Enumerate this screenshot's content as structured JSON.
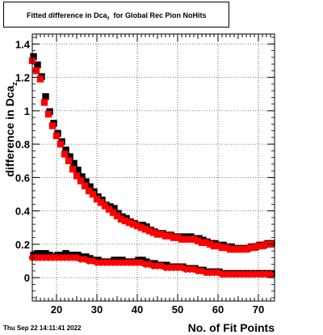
{
  "chart_data": {
    "type": "scatter",
    "title_main": "Fitted difference in Dca",
    "title_sub": "z",
    "title_rest": "for Global Rec Pion NoHits",
    "xlabel": "No. of Fit Points",
    "ylabel_main": "difference in Dca",
    "ylabel_sub": "z",
    "xlim": [
      14,
      74
    ],
    "ylim": [
      -0.14,
      1.46
    ],
    "x_ticks": [
      20,
      30,
      40,
      50,
      60,
      70
    ],
    "y_ticks": [
      0,
      0.2,
      0.4,
      0.6,
      0.8,
      1,
      1.2,
      1.4
    ],
    "grid": true,
    "series": [
      {
        "color": "#000000",
        "marker": "square",
        "x": [
          14,
          15,
          16,
          17,
          18,
          19,
          20,
          21,
          22,
          23,
          24,
          25,
          26,
          27,
          28,
          29,
          30,
          31,
          32,
          33,
          34,
          35,
          36,
          37,
          38,
          39,
          40,
          41,
          42,
          43,
          44,
          45,
          46,
          47,
          48,
          49,
          50,
          51,
          52,
          53,
          54,
          55,
          56,
          57,
          58,
          59,
          60,
          61,
          62,
          63,
          64,
          65,
          66,
          67,
          68,
          69,
          70,
          71,
          72,
          73
        ],
        "y": [
          1.32,
          1.27,
          1.2,
          1.08,
          0.99,
          0.92,
          0.86,
          0.81,
          0.76,
          0.72,
          0.68,
          0.64,
          0.6,
          0.57,
          0.54,
          0.51,
          0.48,
          0.46,
          0.43,
          0.42,
          0.41,
          0.38,
          0.36,
          0.35,
          0.33,
          0.32,
          0.31,
          0.31,
          0.3,
          0.28,
          0.27,
          0.26,
          0.26,
          0.25,
          0.25,
          0.24,
          0.24,
          0.24,
          0.24,
          0.24,
          0.23,
          0.23,
          0.22,
          0.21,
          0.2,
          0.2,
          0.19,
          0.19,
          0.18,
          0.18,
          0.17,
          0.17,
          0.17,
          0.17,
          0.18,
          0.18,
          0.19,
          0.19,
          0.2,
          0.2
        ]
      },
      {
        "color": "#000000",
        "marker": "square",
        "x": [
          14,
          15,
          16,
          17,
          18,
          19,
          20,
          21,
          22,
          23,
          24,
          25,
          26,
          27,
          28,
          29,
          30,
          31,
          32,
          33,
          34,
          35,
          36,
          37,
          38,
          39,
          40,
          41,
          42,
          43,
          44,
          45,
          46,
          47,
          48,
          49,
          50,
          51,
          52,
          53,
          54,
          55,
          56,
          57,
          58,
          59,
          60,
          61,
          62,
          63,
          64,
          65,
          66,
          67,
          68,
          69,
          70,
          71,
          72,
          73
        ],
        "y": [
          0.13,
          0.14,
          0.14,
          0.14,
          0.13,
          0.12,
          0.13,
          0.13,
          0.14,
          0.13,
          0.13,
          0.13,
          0.12,
          0.12,
          0.11,
          0.1,
          0.1,
          0.09,
          0.09,
          0.09,
          0.1,
          0.1,
          0.1,
          0.09,
          0.09,
          0.09,
          0.1,
          0.1,
          0.09,
          0.08,
          0.08,
          0.07,
          0.07,
          0.07,
          0.06,
          0.06,
          0.06,
          0.06,
          0.05,
          0.05,
          0.05,
          0.04,
          0.04,
          0.03,
          0.03,
          0.03,
          0.03,
          0.02,
          0.02,
          0.02,
          0.02,
          0.02,
          0.02,
          0.02,
          0.02,
          0.02,
          0.02,
          0.02,
          0.02,
          0.02
        ]
      },
      {
        "color": "#ff0000",
        "marker": "square",
        "x": [
          14,
          15,
          16,
          17,
          18,
          19,
          20,
          21,
          22,
          23,
          24,
          25,
          26,
          27,
          28,
          29,
          30,
          31,
          32,
          33,
          34,
          35,
          36,
          37,
          38,
          39,
          40,
          41,
          42,
          43,
          44,
          45,
          46,
          47,
          48,
          49,
          50,
          51,
          52,
          53,
          54,
          55,
          56,
          57,
          58,
          59,
          60,
          61,
          62,
          63,
          64,
          65,
          66,
          67,
          68,
          69,
          70,
          71,
          72,
          73
        ],
        "y": [
          1.3,
          1.24,
          1.19,
          1.05,
          0.98,
          0.91,
          0.85,
          0.8,
          0.74,
          0.7,
          0.65,
          0.61,
          0.58,
          0.55,
          0.52,
          0.5,
          0.47,
          0.45,
          0.43,
          0.41,
          0.39,
          0.37,
          0.35,
          0.34,
          0.33,
          0.32,
          0.31,
          0.3,
          0.29,
          0.28,
          0.27,
          0.26,
          0.26,
          0.25,
          0.25,
          0.24,
          0.24,
          0.23,
          0.23,
          0.23,
          0.23,
          0.22,
          0.21,
          0.21,
          0.2,
          0.19,
          0.19,
          0.18,
          0.18,
          0.17,
          0.17,
          0.17,
          0.17,
          0.17,
          0.18,
          0.18,
          0.19,
          0.19,
          0.2,
          0.2
        ]
      },
      {
        "color": "#ff0000",
        "marker": "circle",
        "x": [
          14,
          15,
          16,
          17,
          18,
          19,
          20,
          21,
          22,
          23,
          24,
          25,
          26,
          27,
          28,
          29,
          30,
          31,
          32,
          33,
          34,
          35,
          36,
          37,
          38,
          39,
          40,
          41,
          42,
          43,
          44,
          45,
          46,
          47,
          48,
          49,
          50,
          51,
          52,
          53,
          54,
          55,
          56,
          57,
          58,
          59,
          60,
          61,
          62,
          63,
          64,
          65,
          66,
          67,
          68,
          69,
          70,
          71,
          72,
          73
        ],
        "y": [
          0.12,
          0.12,
          0.12,
          0.12,
          0.12,
          0.12,
          0.12,
          0.12,
          0.12,
          0.12,
          0.12,
          0.12,
          0.11,
          0.11,
          0.1,
          0.1,
          0.09,
          0.09,
          0.09,
          0.09,
          0.09,
          0.09,
          0.09,
          0.09,
          0.09,
          0.09,
          0.09,
          0.09,
          0.08,
          0.08,
          0.07,
          0.07,
          0.07,
          0.06,
          0.06,
          0.06,
          0.06,
          0.06,
          0.05,
          0.05,
          0.05,
          0.04,
          0.04,
          0.03,
          0.03,
          0.03,
          0.03,
          0.02,
          0.02,
          0.02,
          0.02,
          0.02,
          0.02,
          0.02,
          0.02,
          0.02,
          0.02,
          0.02,
          0.02,
          0.02
        ]
      }
    ]
  },
  "footer": {
    "date_text": "Thu Sep 22 14:11:41 2022"
  }
}
